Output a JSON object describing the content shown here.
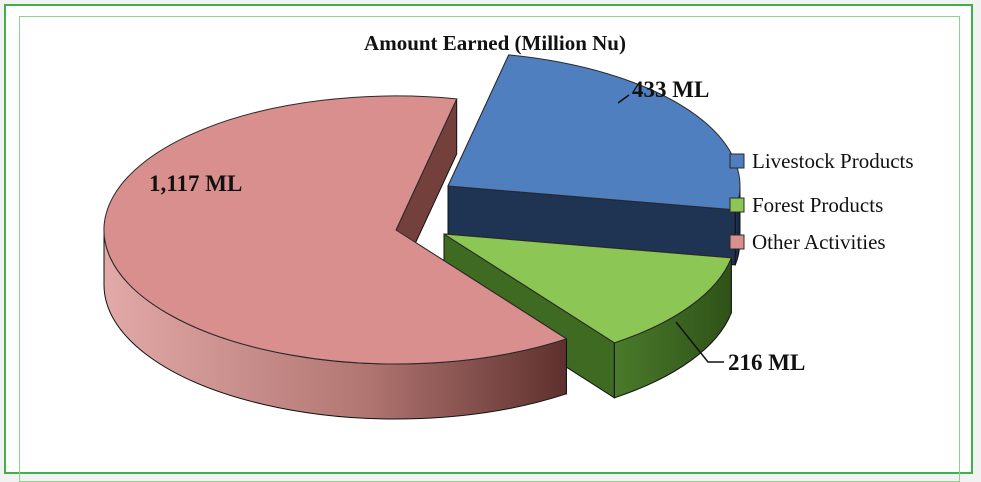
{
  "chart_data": {
    "type": "pie",
    "title": "Amount Earned (Million Nu)",
    "categories": [
      "Livestock Products",
      "Forest Products",
      "Other Activities"
    ],
    "values": [
      433,
      216,
      1117
    ],
    "data_labels": [
      "433 ML",
      "216 ML",
      "1,117 ML"
    ],
    "colors": [
      "#4f7fbf",
      "#8cc654",
      "#d88f8d"
    ],
    "side_colors": [
      "#1f3352",
      "#3f6a22",
      "#74403c"
    ],
    "legend_position": "right",
    "style": "3d-exploded"
  }
}
